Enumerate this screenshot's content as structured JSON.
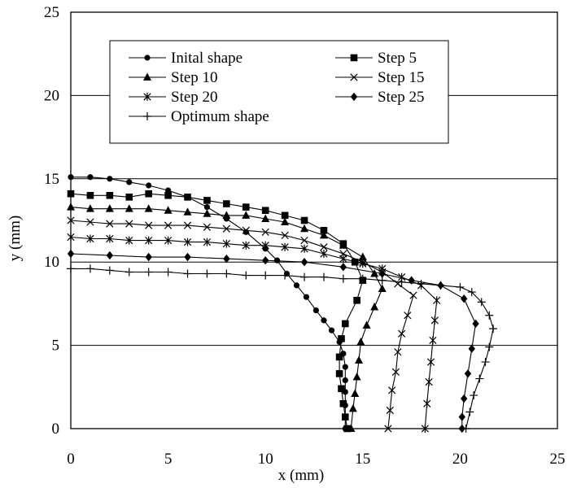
{
  "chart_data": {
    "type": "line",
    "title": "",
    "xlabel": "x (mm)",
    "ylabel": "y (mm)",
    "xlim": [
      0,
      25
    ],
    "ylim": [
      0,
      25
    ],
    "x_ticks": [
      "0",
      "5",
      "10",
      "15",
      "20",
      "25"
    ],
    "y_ticks": [
      "0",
      "5",
      "10",
      "15",
      "20",
      "25"
    ],
    "grid": "horizontal",
    "legend": "top",
    "series": [
      {
        "name": "Inital shape",
        "marker": "circle",
        "points": [
          [
            0,
            15.1
          ],
          [
            1,
            15.1
          ],
          [
            2,
            15.0
          ],
          [
            3,
            14.8
          ],
          [
            4,
            14.6
          ],
          [
            5,
            14.3
          ],
          [
            6,
            13.9
          ],
          [
            7,
            13.3
          ],
          [
            8,
            12.6
          ],
          [
            9,
            11.8
          ],
          [
            10,
            10.8
          ],
          [
            10.6,
            10.1
          ],
          [
            11.1,
            9.3
          ],
          [
            11.6,
            8.6
          ],
          [
            12.1,
            7.9
          ],
          [
            12.6,
            7.1
          ],
          [
            13.0,
            6.5
          ],
          [
            13.4,
            5.9
          ],
          [
            13.8,
            5.2
          ],
          [
            14.0,
            4.5
          ],
          [
            14.1,
            3.7
          ],
          [
            14.1,
            2.9
          ],
          [
            14.1,
            2.2
          ],
          [
            14.1,
            1.4
          ],
          [
            14.1,
            0.7
          ],
          [
            14.1,
            0
          ]
        ]
      },
      {
        "name": "Step 5",
        "marker": "square",
        "points": [
          [
            0,
            14.1
          ],
          [
            1,
            14.0
          ],
          [
            2,
            14.0
          ],
          [
            3,
            13.9
          ],
          [
            4,
            14.1
          ],
          [
            5,
            14.0
          ],
          [
            6,
            13.9
          ],
          [
            7,
            13.7
          ],
          [
            8,
            13.5
          ],
          [
            9,
            13.3
          ],
          [
            10,
            13.1
          ],
          [
            11,
            12.8
          ],
          [
            12,
            12.5
          ],
          [
            13,
            11.9
          ],
          [
            14,
            11.1
          ],
          [
            14.6,
            10.0
          ],
          [
            15.0,
            8.9
          ],
          [
            14.7,
            7.7
          ],
          [
            14.1,
            6.3
          ],
          [
            13.9,
            5.4
          ],
          [
            13.8,
            4.3
          ],
          [
            13.8,
            3.3
          ],
          [
            13.9,
            2.4
          ],
          [
            14.0,
            1.5
          ],
          [
            14.1,
            0.7
          ],
          [
            14.2,
            0
          ]
        ]
      },
      {
        "name": "Step 10",
        "marker": "triangle",
        "points": [
          [
            0,
            13.3
          ],
          [
            1,
            13.2
          ],
          [
            2,
            13.2
          ],
          [
            3,
            13.2
          ],
          [
            4,
            13.2
          ],
          [
            5,
            13.1
          ],
          [
            6,
            13.0
          ],
          [
            7,
            12.9
          ],
          [
            8,
            12.8
          ],
          [
            9,
            12.8
          ],
          [
            10,
            12.6
          ],
          [
            11,
            12.4
          ],
          [
            12,
            12.0
          ],
          [
            13,
            11.6
          ],
          [
            14,
            11.0
          ],
          [
            15,
            10.3
          ],
          [
            15.6,
            9.3
          ],
          [
            16.0,
            8.4
          ],
          [
            15.6,
            7.3
          ],
          [
            15.2,
            6.2
          ],
          [
            14.9,
            5.2
          ],
          [
            14.8,
            4.1
          ],
          [
            14.7,
            3.1
          ],
          [
            14.6,
            2.1
          ],
          [
            14.5,
            1.2
          ],
          [
            14.4,
            0
          ]
        ]
      },
      {
        "name": "Step 15",
        "marker": "x",
        "points": [
          [
            0,
            12.5
          ],
          [
            1,
            12.4
          ],
          [
            2,
            12.3
          ],
          [
            3,
            12.3
          ],
          [
            4,
            12.2
          ],
          [
            5,
            12.2
          ],
          [
            6,
            12.2
          ],
          [
            7,
            12.1
          ],
          [
            8,
            12.0
          ],
          [
            9,
            11.9
          ],
          [
            10,
            11.8
          ],
          [
            11,
            11.6
          ],
          [
            12,
            11.3
          ],
          [
            13,
            10.9
          ],
          [
            14,
            10.5
          ],
          [
            15,
            10.0
          ],
          [
            16,
            9.4
          ],
          [
            16.8,
            8.7
          ],
          [
            17.6,
            8.0
          ],
          [
            17.3,
            6.8
          ],
          [
            17.0,
            5.7
          ],
          [
            16.8,
            4.6
          ],
          [
            16.7,
            3.4
          ],
          [
            16.5,
            2.3
          ],
          [
            16.4,
            1.1
          ],
          [
            16.3,
            0
          ]
        ]
      },
      {
        "name": "Step 20",
        "marker": "star",
        "points": [
          [
            0,
            11.5
          ],
          [
            1,
            11.4
          ],
          [
            2,
            11.4
          ],
          [
            3,
            11.3
          ],
          [
            4,
            11.3
          ],
          [
            5,
            11.3
          ],
          [
            6,
            11.2
          ],
          [
            7,
            11.2
          ],
          [
            8,
            11.1
          ],
          [
            9,
            11.0
          ],
          [
            10,
            11.0
          ],
          [
            11,
            10.9
          ],
          [
            12,
            10.8
          ],
          [
            13,
            10.5
          ],
          [
            14,
            10.2
          ],
          [
            15,
            9.9
          ],
          [
            16,
            9.6
          ],
          [
            17,
            9.1
          ],
          [
            18,
            8.6
          ],
          [
            18.8,
            7.7
          ],
          [
            18.7,
            6.5
          ],
          [
            18.6,
            5.3
          ],
          [
            18.5,
            4.0
          ],
          [
            18.4,
            2.8
          ],
          [
            18.3,
            1.5
          ],
          [
            18.2,
            0
          ]
        ]
      },
      {
        "name": "Step 25",
        "marker": "diamond",
        "points": [
          [
            0,
            10.5
          ],
          [
            2,
            10.4
          ],
          [
            4,
            10.3
          ],
          [
            6,
            10.3
          ],
          [
            8,
            10.2
          ],
          [
            10,
            10.1
          ],
          [
            12,
            10.0
          ],
          [
            14,
            9.7
          ],
          [
            16,
            9.3
          ],
          [
            17.5,
            8.9
          ],
          [
            19.0,
            8.6
          ],
          [
            20.2,
            7.8
          ],
          [
            20.8,
            6.3
          ],
          [
            20.6,
            4.8
          ],
          [
            20.4,
            3.3
          ],
          [
            20.2,
            1.8
          ],
          [
            20.1,
            0.7
          ],
          [
            20.1,
            0
          ]
        ]
      },
      {
        "name": "Optimum shape",
        "marker": "plus",
        "points": [
          [
            0,
            9.6
          ],
          [
            1,
            9.6
          ],
          [
            2,
            9.5
          ],
          [
            3,
            9.4
          ],
          [
            4,
            9.4
          ],
          [
            5,
            9.4
          ],
          [
            6,
            9.3
          ],
          [
            7,
            9.3
          ],
          [
            8,
            9.3
          ],
          [
            9,
            9.2
          ],
          [
            10,
            9.2
          ],
          [
            11,
            9.2
          ],
          [
            12,
            9.1
          ],
          [
            13,
            9.1
          ],
          [
            14,
            9.0
          ],
          [
            15,
            9.0
          ],
          [
            16,
            8.9
          ],
          [
            17,
            8.8
          ],
          [
            18,
            8.7
          ],
          [
            19,
            8.6
          ],
          [
            20,
            8.5
          ],
          [
            20.6,
            8.2
          ],
          [
            21.1,
            7.6
          ],
          [
            21.5,
            6.8
          ],
          [
            21.7,
            6.0
          ],
          [
            21.5,
            4.9
          ],
          [
            21.3,
            4.0
          ],
          [
            21.0,
            3.0
          ],
          [
            20.7,
            2.0
          ],
          [
            20.5,
            1.0
          ],
          [
            20.3,
            0
          ]
        ]
      }
    ]
  }
}
